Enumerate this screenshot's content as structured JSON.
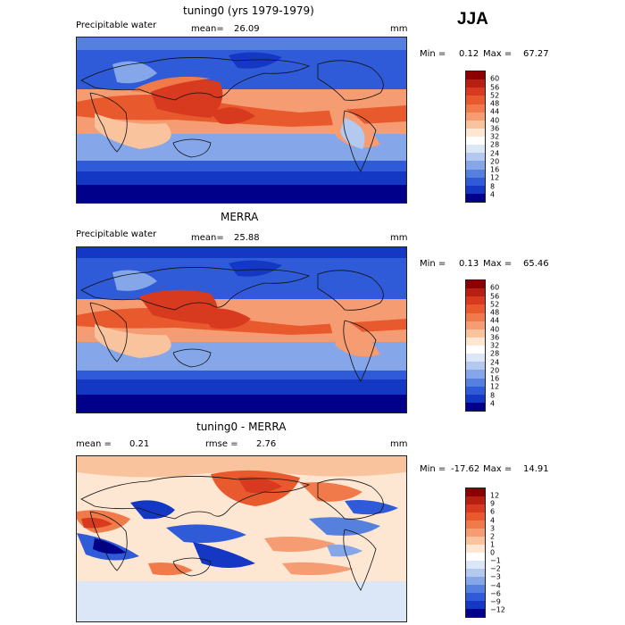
{
  "season": "JJA",
  "panels": [
    {
      "title": "tuning0 (yrs 1979-1979)",
      "variable": "Precipitable water",
      "stat_left": "",
      "stat_left_value": "",
      "stat_mid": "mean=",
      "stat_mid_value": "26.09",
      "units": "mm",
      "range_label": "Min =",
      "min": "0.12",
      "max_label": "Max =",
      "max": "67.27",
      "colorbar_ticks": [
        "60",
        "56",
        "52",
        "48",
        "44",
        "40",
        "36",
        "32",
        "28",
        "24",
        "20",
        "16",
        "12",
        "8",
        "4"
      ],
      "colorbar_colors": [
        "#8b0000",
        "#b71f10",
        "#d73a1f",
        "#e85a2e",
        "#f07a4a",
        "#f59c72",
        "#f9c39e",
        "#fde6d2",
        "#ffffff",
        "#dbe6f7",
        "#b4c9f0",
        "#85a6e8",
        "#5680de",
        "#2f5bd8",
        "#1538c4",
        "#00008b"
      ]
    },
    {
      "title": "MERRA",
      "variable": "Precipitable water",
      "stat_left": "",
      "stat_left_value": "",
      "stat_mid": "mean=",
      "stat_mid_value": "25.88",
      "units": "mm",
      "range_label": "Min =",
      "min": "0.13",
      "max_label": "Max =",
      "max": "65.46",
      "colorbar_ticks": [
        "60",
        "56",
        "52",
        "48",
        "44",
        "40",
        "36",
        "32",
        "28",
        "24",
        "20",
        "16",
        "12",
        "8",
        "4"
      ],
      "colorbar_colors": [
        "#8b0000",
        "#b71f10",
        "#d73a1f",
        "#e85a2e",
        "#f07a4a",
        "#f59c72",
        "#f9c39e",
        "#fde6d2",
        "#ffffff",
        "#dbe6f7",
        "#b4c9f0",
        "#85a6e8",
        "#5680de",
        "#2f5bd8",
        "#1538c4",
        "#00008b"
      ]
    },
    {
      "title": "tuning0 - MERRA",
      "variable": "",
      "stat_left": "mean =",
      "stat_left_value": "0.21",
      "stat_mid": "rmse =",
      "stat_mid_value": "2.76",
      "units": "mm",
      "range_label": "Min =",
      "min": "-17.62",
      "max_label": "Max =",
      "max": "14.91",
      "colorbar_ticks": [
        "12",
        "9",
        "6",
        "4",
        "3",
        "2",
        "1",
        "0",
        "−1",
        "−2",
        "−3",
        "−4",
        "−6",
        "−9",
        "−12"
      ],
      "colorbar_colors": [
        "#8b0000",
        "#b71f10",
        "#d73a1f",
        "#e85a2e",
        "#f07a4a",
        "#f59c72",
        "#f9c39e",
        "#fde6d2",
        "#ffffff",
        "#dbe6f7",
        "#b4c9f0",
        "#85a6e8",
        "#5680de",
        "#2f5bd8",
        "#1538c4",
        "#00008b"
      ]
    }
  ]
}
